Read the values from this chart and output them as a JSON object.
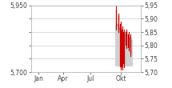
{
  "xlim": [
    0,
    12
  ],
  "ylim": [
    5.7,
    5.95
  ],
  "yticks_left": [
    5.7,
    5.75,
    5.8,
    5.85,
    5.9,
    5.95
  ],
  "yticks_left_labels": [
    "5,700",
    "",
    "",
    "",
    "",
    "5,950"
  ],
  "yticks_right": [
    5.7,
    5.75,
    5.8,
    5.85,
    5.9,
    5.95
  ],
  "yticks_right_labels": [
    "5,70",
    "5,75",
    "5,80",
    "5,85",
    "5,90",
    "5,95"
  ],
  "xtick_positions": [
    0.8,
    3.5,
    6.5,
    9.8
  ],
  "xtick_labels": [
    "Jan",
    "Apr",
    "Jul",
    "Okt"
  ],
  "area_x": [
    9.2,
    9.4,
    9.55,
    9.7,
    9.85,
    10.0,
    10.15,
    10.3,
    10.45,
    10.6,
    10.75,
    10.9,
    11.0
  ],
  "area_top": [
    5.87,
    5.88,
    5.87,
    5.86,
    5.85,
    5.84,
    5.84,
    5.84,
    5.84,
    5.84,
    5.83,
    5.82,
    5.82
  ],
  "area_bottom": [
    5.725,
    5.725,
    5.725,
    5.725,
    5.725,
    5.725,
    5.725,
    5.725,
    5.725,
    5.725,
    5.725,
    5.725,
    5.725
  ],
  "candles": [
    {
      "x": 9.3,
      "open": 5.93,
      "close": 5.87,
      "high": 5.95,
      "low": 5.86
    },
    {
      "x": 9.55,
      "open": 5.91,
      "close": 5.86,
      "high": 5.92,
      "low": 5.85
    },
    {
      "x": 9.75,
      "open": 5.88,
      "close": 5.72,
      "high": 5.89,
      "low": 5.71
    },
    {
      "x": 9.95,
      "open": 5.86,
      "close": 5.72,
      "high": 5.87,
      "low": 5.71
    },
    {
      "x": 10.15,
      "open": 5.85,
      "close": 5.73,
      "high": 5.86,
      "low": 5.72
    },
    {
      "x": 10.4,
      "open": 5.85,
      "close": 5.8,
      "high": 5.86,
      "low": 5.79
    },
    {
      "x": 10.65,
      "open": 5.84,
      "close": 5.79,
      "high": 5.85,
      "low": 5.78
    },
    {
      "x": 10.88,
      "open": 5.83,
      "close": 5.77,
      "high": 5.84,
      "low": 5.76
    }
  ],
  "candle_color": "#cc0000",
  "area_fill_color": "#d0d0d0",
  "area_line_color": "#999999",
  "background_color": "#ffffff",
  "grid_color": "#cccccc",
  "tick_fontsize": 5.5,
  "label_color": "#444444"
}
